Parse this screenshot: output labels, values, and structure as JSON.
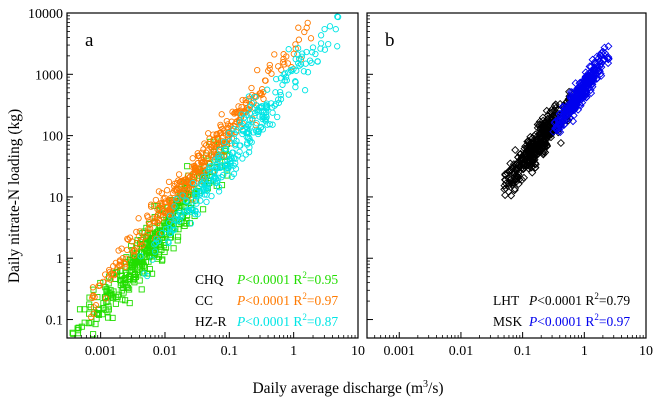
{
  "figure": {
    "xlabel_main": "Daily average discharge (m",
    "xlabel_sup": "3",
    "xlabel_tail": "/s)",
    "ylabel": "Daily nitrate-N loading (kg)"
  },
  "chart_data": [
    {
      "panel": "a",
      "type": "scatter",
      "x_scale": "log",
      "y_scale": "log",
      "xlim": [
        0.0003,
        10
      ],
      "ylim": [
        0.05,
        10000
      ],
      "x_ticks": [
        0.001,
        0.01,
        0.1,
        1,
        10
      ],
      "x_tick_labels": [
        "0.001",
        "0.01",
        "0.1",
        "1",
        "10"
      ],
      "y_ticks": [
        0.1,
        1,
        10,
        100,
        1000,
        10000
      ],
      "y_tick_labels": [
        "0.1",
        "1",
        "10",
        "100",
        "1000",
        "10000"
      ],
      "series": [
        {
          "name": "CHQ",
          "marker": "square",
          "color": "#22dd00",
          "x_range": [
            0.00035,
            0.1
          ],
          "slope": 1.3,
          "intercept_log": 3.1,
          "scatter": 0.2,
          "n": 420,
          "stats": {
            "p": "<0.0001",
            "r2": "=0.95"
          }
        },
        {
          "name": "CC",
          "marker": "circle",
          "color": "#ff7a00",
          "x_range": [
            0.0007,
            2.0
          ],
          "slope": 1.28,
          "intercept_log": 3.38,
          "scatter": 0.15,
          "n": 360,
          "stats": {
            "p": "<0.0001",
            "r2": "=0.97"
          }
        },
        {
          "name": "HZ-R",
          "marker": "circle",
          "color": "#00e5e5",
          "x_range": [
            0.004,
            5.0
          ],
          "slope": 1.28,
          "intercept_log": 2.95,
          "scatter": 0.18,
          "n": 300,
          "stats": {
            "p": "<0.0001",
            "r2": "=0.87"
          }
        }
      ]
    },
    {
      "panel": "b",
      "type": "scatter",
      "x_scale": "log",
      "y_scale": "log",
      "xlim": [
        0.0003,
        10
      ],
      "ylim": [
        0.05,
        10000
      ],
      "x_ticks": [
        0.001,
        0.01,
        0.1,
        1,
        10
      ],
      "x_tick_labels": [
        "0.001",
        "0.01",
        "0.1",
        "1",
        "10"
      ],
      "series": [
        {
          "name": "LHT",
          "marker": "diamond",
          "color": "#000000",
          "x_range": [
            0.05,
            0.6
          ],
          "slope": 1.3,
          "intercept_log": 2.85,
          "scatter": 0.14,
          "n": 380,
          "stats": {
            "p": "<0.0001",
            "r2": "=0.79"
          }
        },
        {
          "name": "MSK",
          "marker": "diamond",
          "color": "#0000ee",
          "x_range": [
            0.3,
            2.5
          ],
          "slope": 1.4,
          "intercept_log": 2.78,
          "scatter": 0.1,
          "n": 300,
          "stats": {
            "p": "<0.0001",
            "r2": "=0.97"
          }
        }
      ]
    }
  ]
}
